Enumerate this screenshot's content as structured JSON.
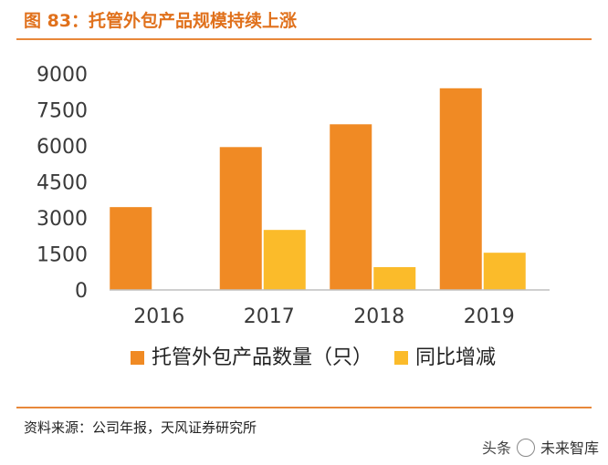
{
  "header": {
    "title": "图 83：托管外包产品规模持续上涨"
  },
  "footer": {
    "source": "资料来源：公司年报，天风证券研究所"
  },
  "watermark": {
    "prefix": "头条",
    "name": "未来智库"
  },
  "colors": {
    "accent": "#e0711c",
    "series1": "#f08a24",
    "series2": "#fbbb2a",
    "axis": "#bfbfbf"
  },
  "chart_data": {
    "type": "bar",
    "title": "",
    "xlabel": "",
    "ylabel": "",
    "categories": [
      "2016",
      "2017",
      "2018",
      "2019"
    ],
    "series": [
      {
        "name": "托管外包产品数量（只）",
        "values": [
          3450,
          5950,
          6900,
          8400
        ]
      },
      {
        "name": "同比增减",
        "values": [
          null,
          2500,
          950,
          1550
        ]
      }
    ],
    "yticks": [
      "0",
      "1500",
      "3000",
      "4500",
      "6000",
      "7500",
      "9000"
    ],
    "ylim": [
      0,
      9000
    ],
    "grid": false,
    "legend": "bottom"
  }
}
